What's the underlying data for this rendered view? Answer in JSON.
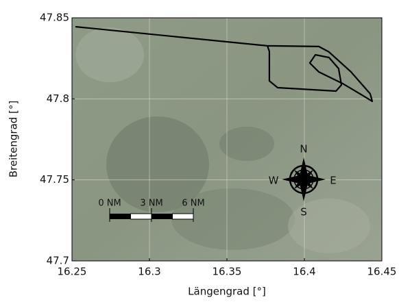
{
  "chart_data": {
    "type": "line",
    "x_label": "Längengrad [°]",
    "y_label": "Breitengrad [°]",
    "x": [
      16.2522,
      16.3761,
      16.3774,
      16.3774,
      16.3827,
      16.4204,
      16.4239,
      16.4221,
      16.4159,
      16.4071,
      16.4035,
      16.4093,
      16.4248,
      16.4381,
      16.4438,
      16.4425,
      16.4301,
      16.4159,
      16.4093,
      16.3761
    ],
    "values": [
      47.8445,
      47.8327,
      47.8293,
      47.8111,
      47.8069,
      47.8048,
      47.8086,
      47.8187,
      47.8255,
      47.8272,
      47.8221,
      47.8166,
      47.8094,
      47.8018,
      47.7985,
      47.8031,
      47.8166,
      47.8289,
      47.8323,
      47.8327
    ],
    "color": "#000000",
    "xlim": [
      16.25,
      16.45
    ],
    "xticks": [
      16.25,
      16.3,
      16.35,
      16.4,
      16.45
    ],
    "ylim": [
      47.7,
      47.85
    ],
    "yticks": [
      47.7,
      47.75,
      47.8,
      47.85
    ],
    "grid": true,
    "compass": [
      "N",
      "E",
      "S",
      "W"
    ],
    "scale_bar": [
      "0 NM",
      "3 NM",
      "6 NM"
    ]
  }
}
